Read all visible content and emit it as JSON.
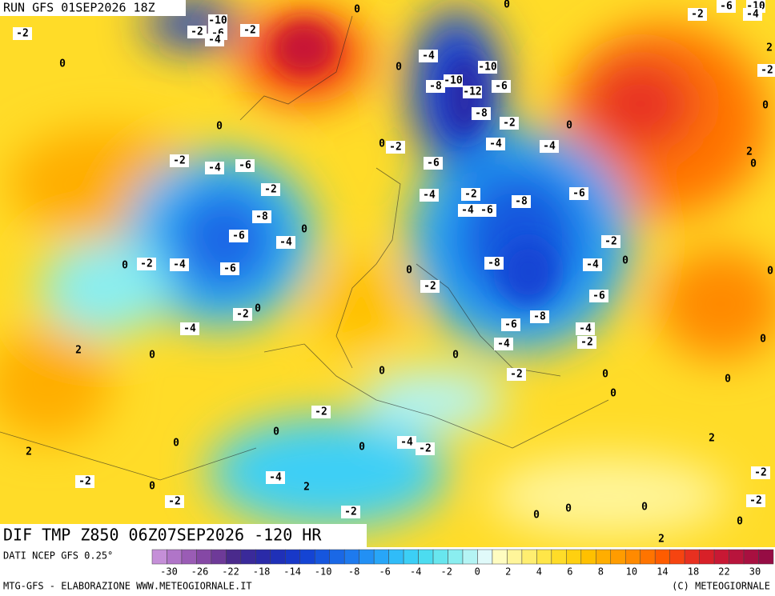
{
  "header": {
    "run": "RUN GFS 01SEP2026 18Z",
    "title": "DIF TMP Z850 06Z07SEP2026 -120 HR",
    "source": "DATI NCEP GFS 0.25°",
    "credit": "MTG-GFS - ELABORAZIONE WWW.METEOGIORNALE.IT",
    "copyright": "(C) METEOGIORNALE"
  },
  "colorbar": {
    "colors": [
      "#c58fd8",
      "#b075c8",
      "#9a5cb5",
      "#8548a5",
      "#6e3a98",
      "#4a2a8c",
      "#3a2a9a",
      "#2a2aa8",
      "#1f30b8",
      "#1838c8",
      "#1444d4",
      "#1656de",
      "#1a68e6",
      "#1e7aee",
      "#2290f4",
      "#28a6f8",
      "#30bcf8",
      "#3ccff6",
      "#4cdcf0",
      "#68e6ee",
      "#8aeef0",
      "#b4f4f4",
      "#e0fafa",
      "#fffcc0",
      "#fff59a",
      "#ffee70",
      "#ffe648",
      "#ffdc28",
      "#ffd010",
      "#ffc000",
      "#ffae00",
      "#ff9c00",
      "#ff8a00",
      "#ff7400",
      "#ff5c00",
      "#f64410",
      "#e83020",
      "#d82028",
      "#c81834",
      "#b8143c",
      "#a81040",
      "#960c44"
    ],
    "labels": [
      -30,
      -26,
      -22,
      -18,
      -14,
      -10,
      -8,
      -6,
      -4,
      -2,
      0,
      2,
      4,
      6,
      8,
      10,
      14,
      18,
      22,
      30
    ]
  },
  "contour_labels": [
    -2,
    -10,
    -2,
    -6,
    -4,
    -2,
    0,
    0,
    0,
    0,
    -4,
    -10,
    -10,
    -8,
    -12,
    -6,
    -8,
    -2,
    0,
    0,
    0,
    -2,
    -4,
    -4,
    -2,
    -4,
    -6,
    -6,
    -2,
    -4,
    -2,
    -8,
    -6,
    -4,
    -6,
    -8,
    -6,
    0,
    -4,
    -2,
    0,
    -2,
    -4,
    -6,
    -8,
    -4,
    0,
    0,
    -2,
    -6,
    0,
    -2,
    -8,
    -6,
    -4,
    -4,
    -2,
    -4,
    2,
    0,
    0,
    0,
    -2,
    0,
    0,
    0,
    -2,
    0,
    -2,
    -4,
    0,
    2,
    0,
    2,
    -2,
    -4,
    2,
    0,
    -2,
    -2,
    -2,
    -2,
    0,
    0,
    0,
    0,
    2,
    -2,
    -6,
    -10,
    -4,
    2,
    -2,
    0,
    2,
    0,
    0,
    0
  ]
}
